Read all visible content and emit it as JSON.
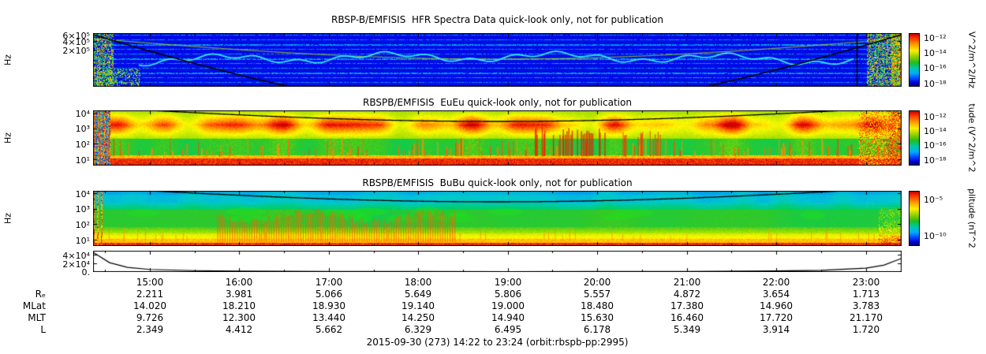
{
  "caption": "2015-09-30 (273) 14:22 to 23:24 (orbit:rbspb-pp:2995)",
  "colors": {
    "colorbar_top": "#cc0000",
    "colorbar_bottom": "#000080",
    "background": "#ffffff"
  },
  "chart_data": {
    "type": "spectrogram-stack",
    "date": "2015-09-30",
    "day_of_year": "273",
    "time_start": "14:22",
    "time_end": "23:24",
    "orbit": "rbspb-pp:2995",
    "time_ticks": [
      "15:00",
      "16:00",
      "17:00",
      "18:00",
      "19:00",
      "20:00",
      "21:00",
      "22:00",
      "23:00"
    ],
    "panels": [
      {
        "type": "heatmap",
        "title": "RBSP-B/EMFISIS  HFR Spectra Data quick-look only, not for publication",
        "ylabel": "Hz",
        "y_ticks": [
          "6×10⁵",
          "4×10⁵",
          "2×10⁵"
        ],
        "colorbar": {
          "ticks": [
            "10⁻¹²",
            "10⁻¹⁴",
            "10⁻¹⁶",
            "10⁻¹⁸"
          ],
          "unit_label": "V^2/m^2/Hz"
        },
        "features": [
          "dark blue background with dotted horizontal banding",
          "wavy cyan upper-hybrid resonance line across the middle",
          "faint yellow-green arc from upper left to upper right",
          "black fce curve dipping below the panel in the middle",
          "thin vertical black line near the right edge",
          "broadband green/yellow noise at the left and right edges"
        ]
      },
      {
        "type": "heatmap",
        "title": "RBSPB/EMFISIS  EuEu quick-look only, not for publication",
        "ylabel": "Hz",
        "y_ticks": [
          "10⁴",
          "10³",
          "10²",
          "10¹"
        ],
        "colorbar": {
          "ticks": [
            "10⁻¹²",
            "10⁻¹⁴",
            "10⁻¹⁶",
            "10⁻¹⁸"
          ],
          "unit_label": "tude (V^2/m^2"
        },
        "features": [
          "green background",
          "intense red-orange blobby band between ~300 Hz and 10 kHz for the whole interval",
          "solid red band at the lowest frequencies",
          "many narrow vertical orange bursts rising from low frequencies",
          "black fce curve arcing just below the top of the panel",
          "red broadband striping at the left and right edges"
        ]
      },
      {
        "type": "heatmap",
        "title": "RBSPB/EMFISIS  BuBu quick-look only, not for publication",
        "ylabel": "Hz",
        "y_ticks": [
          "10⁴",
          "10³",
          "10²",
          "10¹"
        ],
        "colorbar": {
          "ticks": [
            "10⁻⁵",
            "10⁻¹⁰"
          ],
          "unit_label": "plitude (nT^2"
        },
        "features": [
          "cyan-blue at high frequencies, green mid band, yellow-orange-red at low frequencies",
          "bright green patches near a few hundred Hz",
          "dense comb of vertical orange spikes between about 16:00 and 18:30",
          "black fce curve arcing just below the top of the panel"
        ]
      },
      {
        "type": "line",
        "y_ticks": [
          "4×10⁴",
          "2×10⁴",
          "0."
        ],
        "x_hours": [
          14.37,
          14.55,
          14.75,
          15.0,
          15.5,
          16,
          17,
          18,
          19,
          20,
          21,
          22,
          22.5,
          23,
          23.2,
          23.4
        ],
        "values": [
          46000,
          22000,
          11000,
          6000,
          3200,
          2200,
          1400,
          1000,
          900,
          1000,
          1400,
          2600,
          4000,
          9000,
          16000,
          32000
        ]
      }
    ],
    "ephemeris": {
      "rows": [
        {
          "label": "Rₑ",
          "values": [
            "2.211",
            "3.981",
            "5.066",
            "5.649",
            "5.806",
            "5.557",
            "4.872",
            "3.654",
            "1.713"
          ]
        },
        {
          "label": "MLat",
          "values": [
            "14.020",
            "18.210",
            "18.930",
            "19.140",
            "19.000",
            "18.480",
            "17.380",
            "14.960",
            "3.783"
          ]
        },
        {
          "label": "MLT",
          "values": [
            "9.726",
            "12.300",
            "13.440",
            "14.250",
            "14.940",
            "15.630",
            "16.460",
            "17.720",
            "21.170"
          ]
        },
        {
          "label": "L",
          "values": [
            "2.349",
            "4.412",
            "5.662",
            "6.329",
            "6.495",
            "6.178",
            "5.349",
            "3.914",
            "1.720"
          ]
        }
      ]
    }
  }
}
